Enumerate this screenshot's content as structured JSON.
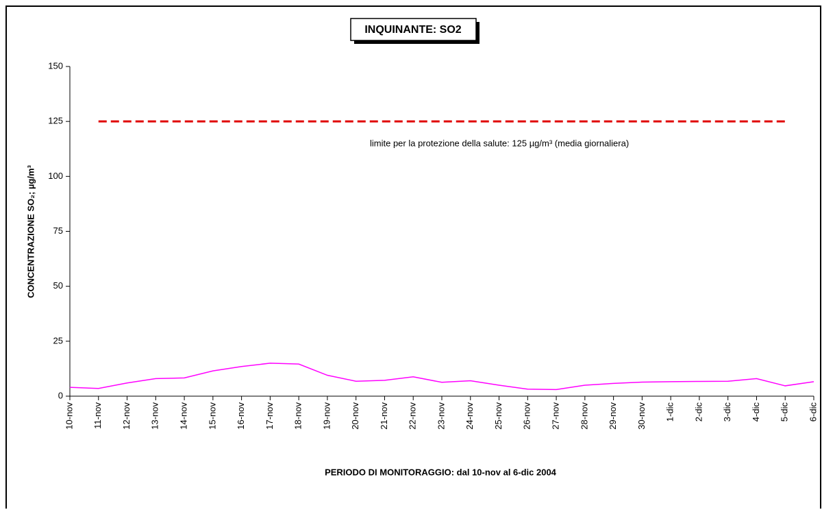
{
  "chart_data": {
    "type": "line",
    "title": "INQUINANTE: SO2",
    "y_label": "CONCENTRAZIONE SO₂;  µg/m³",
    "x_label": "PERIODO DI MONITORAGGIO: dal 10-nov al 6-dic 2004",
    "annotation": "limite per la protezione della salute: 125 µg/m³ (media giornaliera)",
    "categories": [
      "10-nov",
      "11-nov",
      "12-nov",
      "13-nov",
      "14-nov",
      "15-nov",
      "16-nov",
      "17-nov",
      "18-nov",
      "19-nov",
      "20-nov",
      "21-nov",
      "22-nov",
      "23-nov",
      "24-nov",
      "25-nov",
      "26-nov",
      "27-nov",
      "28-nov",
      "29-nov",
      "30-nov",
      "1-dic",
      "2-dic",
      "3-dic",
      "4-dic",
      "5-dic",
      "6-dic"
    ],
    "series": [
      {
        "color": "#ff00ff",
        "dash": false,
        "values": [
          4,
          3.5,
          6,
          8,
          8.3,
          11.5,
          13.5,
          15,
          14.6,
          9.5,
          6.8,
          7.2,
          8.8,
          6.3,
          7,
          5,
          3.2,
          3,
          5,
          5.8,
          6.4,
          6.6,
          6.7,
          6.8,
          8,
          4.7,
          6.6
        ]
      },
      {
        "color": "#e00000",
        "dash": true,
        "values": [
          null,
          125,
          125,
          125,
          125,
          125,
          125,
          125,
          125,
          125,
          125,
          125,
          125,
          125,
          125,
          125,
          125,
          125,
          125,
          125,
          125,
          125,
          125,
          125,
          125,
          125,
          null
        ]
      }
    ],
    "ylim": [
      0,
      150
    ],
    "yticks": [
      0,
      25,
      50,
      75,
      100,
      125,
      150
    ],
    "grid": false
  }
}
